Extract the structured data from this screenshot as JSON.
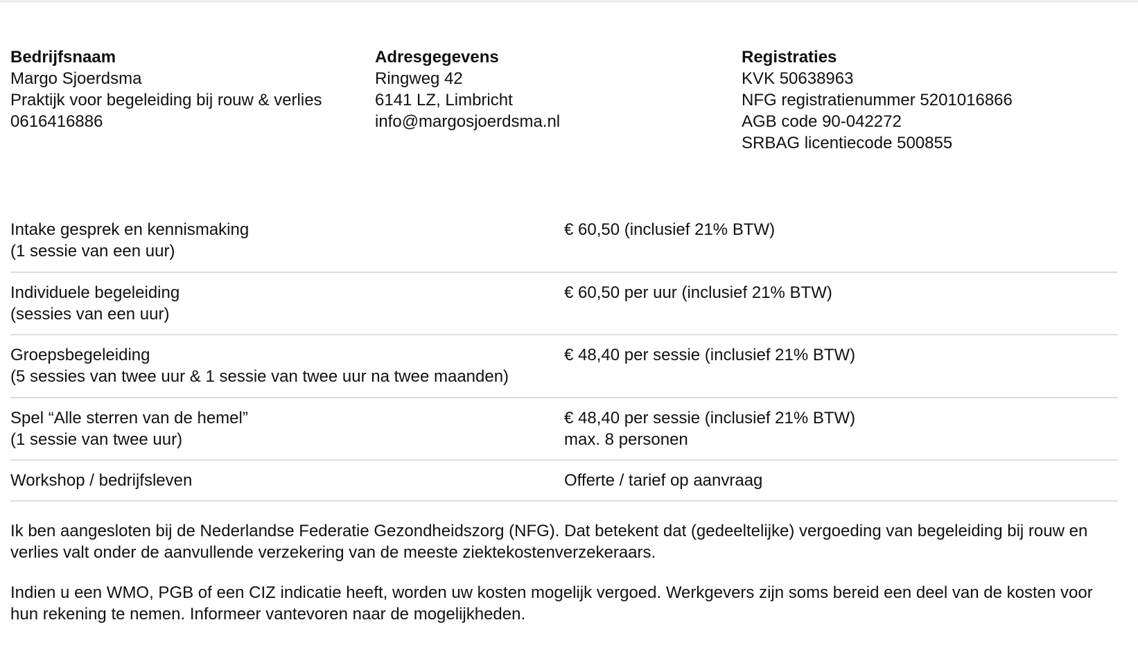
{
  "company": {
    "heading": "Bedrijfsnaam",
    "lines": [
      "Margo Sjoerdsma",
      "Praktijk voor begeleiding bij rouw & verlies",
      "0616416886"
    ]
  },
  "address": {
    "heading": "Adresgegevens",
    "lines": [
      "Ringweg 42",
      "6141 LZ, Limbricht",
      "info@margosjoerdsma.nl"
    ]
  },
  "registrations": {
    "heading": "Registraties",
    "lines": [
      "KVK 50638963",
      "NFG registratienummer 5201016866",
      "AGB code 90-042272",
      "SRBAG licentiecode 500855"
    ]
  },
  "prices": [
    {
      "service": "Intake gesprek en kennismaking",
      "detail": "(1 sessie van een uur)",
      "price": "€ 60,50 (inclusief 21% BTW)",
      "note": ""
    },
    {
      "service": "Individuele begeleiding",
      "detail": "(sessies van een uur)",
      "price": "€ 60,50 per uur (inclusief 21% BTW)",
      "note": ""
    },
    {
      "service": "Groepsbegeleiding",
      "detail": "(5 sessies van twee uur & 1 sessie van twee uur na twee maanden)",
      "price": "€ 48,40 per sessie (inclusief 21% BTW)",
      "note": ""
    },
    {
      "service": "Spel “Alle sterren van de hemel”",
      "detail": "(1 sessie van twee uur)",
      "price": "€ 48,40 per sessie (inclusief 21% BTW)",
      "note": "max. 8 personen"
    },
    {
      "service": "Workshop / bedrijfsleven",
      "detail": "",
      "price": "Offerte / tarief op aanvraag",
      "note": ""
    }
  ],
  "paragraphs": [
    "Ik ben aangesloten bij de Nederlandse Federatie Gezondheidszorg (NFG). Dat betekent dat (gedeeltelijke) vergoeding van begeleiding bij rouw en verlies valt onder de aanvullende verzekering van de meeste ziektekostenverzekeraars.",
    "Indien u een WMO, PGB of een CIZ indicatie heeft, worden uw kosten mogelijk vergoed. Werkgevers zijn soms bereid een deel van de kosten voor hun rekening te nemen. Informeer vantevoren naar de mogelijkheden."
  ]
}
